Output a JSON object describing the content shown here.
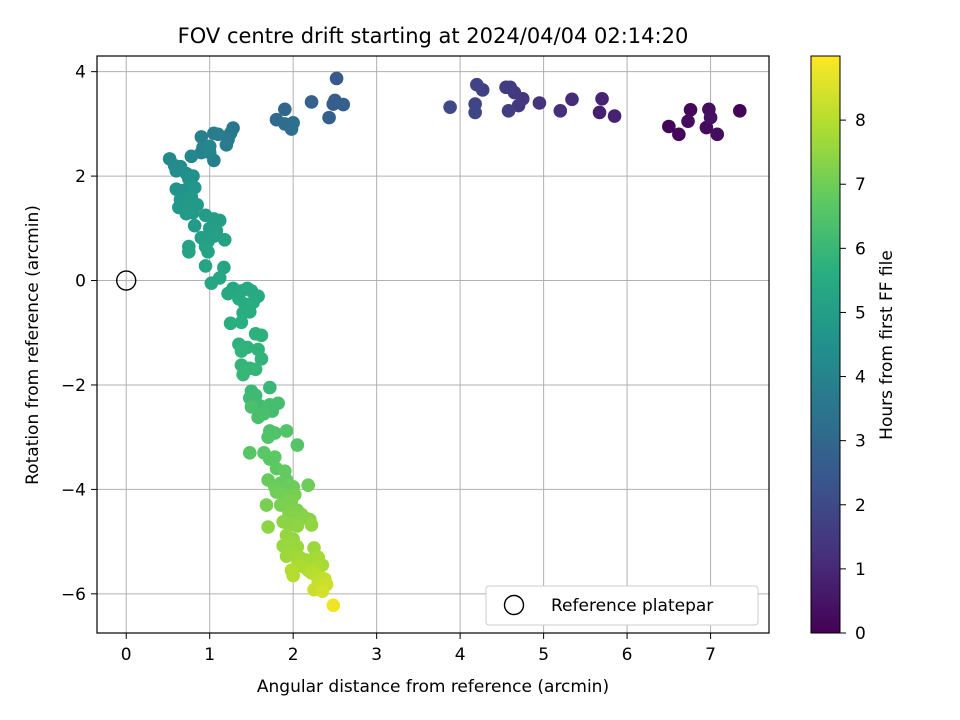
{
  "chart_data": {
    "type": "scatter",
    "title": "FOV centre drift starting at 2024/04/04 02:14:20",
    "xlabel": "Angular distance from reference (arcmin)",
    "ylabel": "Rotation from reference (arcmin)",
    "xlim": [
      -0.35,
      7.7
    ],
    "ylim": [
      -6.75,
      4.3
    ],
    "xticks": [
      "0",
      "1",
      "2",
      "3",
      "4",
      "5",
      "6",
      "7"
    ],
    "yticks": [
      "−6",
      "−4",
      "−2",
      "0",
      "2",
      "4"
    ],
    "grid": true,
    "legend": {
      "position": "lower-right",
      "entries": [
        "Reference platepar"
      ]
    },
    "colorbar": {
      "label": "Hours from first FF file",
      "min": 0,
      "max": 9.0,
      "ticks": [
        "0",
        "1",
        "2",
        "3",
        "4",
        "5",
        "6",
        "7",
        "8"
      ],
      "colormap": "viridis"
    },
    "reference_point": {
      "x": 0,
      "y": 0,
      "label": "Reference platepar"
    },
    "points": [
      [
        6.5,
        2.95,
        0.1
      ],
      [
        6.62,
        2.8,
        0.2
      ],
      [
        6.73,
        3.05,
        0.3
      ],
      [
        6.76,
        3.27,
        0.15
      ],
      [
        6.95,
        2.93,
        0.25
      ],
      [
        6.98,
        3.28,
        0.35
      ],
      [
        7.0,
        3.12,
        0.4
      ],
      [
        7.08,
        2.8,
        0.3
      ],
      [
        7.35,
        3.25,
        0.05
      ],
      [
        5.7,
        3.48,
        0.9
      ],
      [
        5.67,
        3.22,
        0.8
      ],
      [
        5.85,
        3.15,
        0.85
      ],
      [
        5.34,
        3.47,
        1.1
      ],
      [
        5.2,
        3.25,
        1.2
      ],
      [
        4.95,
        3.4,
        1.3
      ],
      [
        4.75,
        3.48,
        1.4
      ],
      [
        4.7,
        3.35,
        1.5
      ],
      [
        4.65,
        3.6,
        1.45
      ],
      [
        4.55,
        3.7,
        1.6
      ],
      [
        4.6,
        3.7,
        1.55
      ],
      [
        4.58,
        3.25,
        1.65
      ],
      [
        4.27,
        3.65,
        1.7
      ],
      [
        4.2,
        3.75,
        1.8
      ],
      [
        4.18,
        3.38,
        1.85
      ],
      [
        4.18,
        3.22,
        1.9
      ],
      [
        3.88,
        3.32,
        2.0
      ],
      [
        2.52,
        3.87,
        2.5
      ],
      [
        2.5,
        3.45,
        2.6
      ],
      [
        2.48,
        3.38,
        2.65
      ],
      [
        2.6,
        3.37,
        2.7
      ],
      [
        2.43,
        3.12,
        2.75
      ],
      [
        2.22,
        3.42,
        2.8
      ],
      [
        1.9,
        3.28,
        3.0
      ],
      [
        1.8,
        3.08,
        3.1
      ],
      [
        1.9,
        3.0,
        3.2
      ],
      [
        2.0,
        3.02,
        3.3
      ],
      [
        1.98,
        2.9,
        3.25
      ],
      [
        1.28,
        2.92,
        3.5
      ],
      [
        1.25,
        2.82,
        3.6
      ],
      [
        1.22,
        2.7,
        3.65
      ],
      [
        1.2,
        2.6,
        3.7
      ],
      [
        1.05,
        2.82,
        3.75
      ],
      [
        1.1,
        2.8,
        3.8
      ],
      [
        1.05,
        2.3,
        3.85
      ],
      [
        0.9,
        2.75,
        3.9
      ],
      [
        0.92,
        2.55,
        3.95
      ],
      [
        0.9,
        2.45,
        4.0
      ],
      [
        1.0,
        2.45,
        4.05
      ],
      [
        1.0,
        2.57,
        4.1
      ],
      [
        0.78,
        2.38,
        4.15
      ],
      [
        0.52,
        2.33,
        4.25
      ],
      [
        0.58,
        2.2,
        4.3
      ],
      [
        0.6,
        2.1,
        4.35
      ],
      [
        0.65,
        2.18,
        4.4
      ],
      [
        0.72,
        2.05,
        4.45
      ],
      [
        0.8,
        2.0,
        4.5
      ],
      [
        0.75,
        1.95,
        4.55
      ],
      [
        0.6,
        1.75,
        4.6
      ],
      [
        0.68,
        1.72,
        4.62
      ],
      [
        0.75,
        1.78,
        4.65
      ],
      [
        0.82,
        1.78,
        4.68
      ],
      [
        0.65,
        1.55,
        4.7
      ],
      [
        0.7,
        1.5,
        4.72
      ],
      [
        0.78,
        1.6,
        4.75
      ],
      [
        0.63,
        1.4,
        4.78
      ],
      [
        0.75,
        1.42,
        4.8
      ],
      [
        0.8,
        1.3,
        4.82
      ],
      [
        0.85,
        1.45,
        4.85
      ],
      [
        0.72,
        1.28,
        4.88
      ],
      [
        0.82,
        1.05,
        4.9
      ],
      [
        0.95,
        1.25,
        4.92
      ],
      [
        1.05,
        1.18,
        4.95
      ],
      [
        1.12,
        1.15,
        4.98
      ],
      [
        1.0,
        1.0,
        5.0
      ],
      [
        1.08,
        0.95,
        5.02
      ],
      [
        0.9,
        0.82,
        5.05
      ],
      [
        0.98,
        0.75,
        5.08
      ],
      [
        1.05,
        0.85,
        5.1
      ],
      [
        1.18,
        0.78,
        5.12
      ],
      [
        0.95,
        0.65,
        5.15
      ],
      [
        0.75,
        0.65,
        5.18
      ],
      [
        0.75,
        0.55,
        5.2
      ],
      [
        0.98,
        0.55,
        5.22
      ],
      [
        0.95,
        0.28,
        5.25
      ],
      [
        1.17,
        0.25,
        5.28
      ],
      [
        1.12,
        0.05,
        5.3
      ],
      [
        1.02,
        -0.05,
        5.32
      ],
      [
        1.28,
        -0.15,
        5.35
      ],
      [
        1.22,
        -0.25,
        5.38
      ],
      [
        1.38,
        -0.2,
        5.4
      ],
      [
        1.45,
        -0.15,
        5.42
      ],
      [
        1.5,
        -0.2,
        5.45
      ],
      [
        1.58,
        -0.3,
        5.48
      ],
      [
        1.35,
        -0.35,
        5.5
      ],
      [
        1.42,
        -0.45,
        5.52
      ],
      [
        1.52,
        -0.42,
        5.55
      ],
      [
        1.4,
        -0.62,
        5.58
      ],
      [
        1.48,
        -0.6,
        5.6
      ],
      [
        1.38,
        -0.8,
        5.62
      ],
      [
        1.25,
        -0.82,
        5.65
      ],
      [
        1.55,
        -1.02,
        5.7
      ],
      [
        1.62,
        -1.05,
        5.72
      ],
      [
        1.35,
        -1.22,
        5.75
      ],
      [
        1.45,
        -1.28,
        5.78
      ],
      [
        1.58,
        -1.32,
        5.8
      ],
      [
        1.38,
        -1.35,
        5.82
      ],
      [
        1.62,
        -1.5,
        5.85
      ],
      [
        1.38,
        -1.62,
        5.88
      ],
      [
        1.48,
        -1.68,
        5.9
      ],
      [
        1.55,
        -1.7,
        5.92
      ],
      [
        1.4,
        -1.8,
        5.95
      ],
      [
        1.72,
        -2.05,
        6.0
      ],
      [
        1.5,
        -2.12,
        6.05
      ],
      [
        1.55,
        -2.2,
        6.1
      ],
      [
        1.48,
        -2.25,
        6.12
      ],
      [
        1.6,
        -2.4,
        6.15
      ],
      [
        1.68,
        -2.48,
        6.18
      ],
      [
        1.75,
        -2.5,
        6.2
      ],
      [
        1.82,
        -2.35,
        6.25
      ],
      [
        1.72,
        -2.38,
        6.28
      ],
      [
        1.65,
        -2.55,
        6.3
      ],
      [
        1.58,
        -2.62,
        6.32
      ],
      [
        1.5,
        -2.42,
        6.35
      ],
      [
        1.72,
        -2.88,
        6.4
      ],
      [
        1.78,
        -2.92,
        6.45
      ],
      [
        1.7,
        -3.0,
        6.48
      ],
      [
        1.92,
        -2.88,
        6.5
      ],
      [
        2.05,
        -3.15,
        6.55
      ],
      [
        1.48,
        -3.3,
        6.6
      ],
      [
        1.65,
        -3.3,
        6.65
      ],
      [
        1.72,
        -3.42,
        6.68
      ],
      [
        1.78,
        -3.38,
        6.7
      ],
      [
        1.8,
        -3.6,
        6.75
      ],
      [
        1.9,
        -3.65,
        6.8
      ],
      [
        1.92,
        -3.82,
        6.82
      ],
      [
        1.85,
        -3.88,
        6.85
      ],
      [
        1.7,
        -3.82,
        6.88
      ],
      [
        1.78,
        -3.95,
        6.9
      ],
      [
        1.95,
        -3.92,
        6.92
      ],
      [
        2.0,
        -3.95,
        6.95
      ],
      [
        2.18,
        -3.92,
        6.98
      ],
      [
        1.8,
        -4.05,
        7.0
      ],
      [
        1.88,
        -4.1,
        7.05
      ],
      [
        1.95,
        -4.15,
        7.08
      ],
      [
        2.02,
        -4.1,
        7.1
      ],
      [
        1.68,
        -4.3,
        7.12
      ],
      [
        1.85,
        -4.3,
        7.15
      ],
      [
        1.98,
        -4.22,
        7.18
      ],
      [
        2.05,
        -4.4,
        7.2
      ],
      [
        1.95,
        -4.45,
        7.25
      ],
      [
        2.0,
        -4.52,
        7.28
      ],
      [
        2.1,
        -4.48,
        7.3
      ],
      [
        2.15,
        -4.55,
        7.32
      ],
      [
        2.2,
        -4.58,
        7.35
      ],
      [
        1.7,
        -4.72,
        7.38
      ],
      [
        1.88,
        -4.62,
        7.4
      ],
      [
        1.95,
        -4.68,
        7.42
      ],
      [
        2.05,
        -4.7,
        7.45
      ],
      [
        2.22,
        -4.68,
        7.48
      ],
      [
        1.92,
        -4.88,
        7.5
      ],
      [
        2.0,
        -4.95,
        7.52
      ],
      [
        1.88,
        -5.08,
        7.55
      ],
      [
        1.95,
        -5.05,
        7.58
      ],
      [
        2.05,
        -5.1,
        7.6
      ],
      [
        2.25,
        -5.12,
        7.62
      ],
      [
        1.92,
        -5.28,
        7.65
      ],
      [
        2.0,
        -5.25,
        7.68
      ],
      [
        2.08,
        -5.3,
        7.7
      ],
      [
        2.15,
        -5.35,
        7.72
      ],
      [
        2.22,
        -5.35,
        7.75
      ],
      [
        2.3,
        -5.3,
        7.78
      ],
      [
        2.35,
        -5.45,
        7.8
      ],
      [
        2.05,
        -5.45,
        7.82
      ],
      [
        2.12,
        -5.48,
        7.85
      ],
      [
        2.18,
        -5.55,
        7.88
      ],
      [
        2.25,
        -5.52,
        7.9
      ],
      [
        2.28,
        -5.62,
        7.92
      ],
      [
        1.98,
        -5.55,
        7.95
      ],
      [
        2.0,
        -5.65,
        7.98
      ],
      [
        2.22,
        -5.6,
        8.0
      ],
      [
        2.28,
        -5.65,
        8.05
      ],
      [
        2.35,
        -5.7,
        8.08
      ],
      [
        2.3,
        -5.78,
        8.1
      ],
      [
        2.38,
        -5.72,
        8.15
      ],
      [
        2.32,
        -5.85,
        8.2
      ],
      [
        2.25,
        -5.92,
        8.25
      ],
      [
        2.4,
        -5.82,
        8.3
      ],
      [
        2.35,
        -5.95,
        8.4
      ],
      [
        2.48,
        -6.22,
        8.8
      ]
    ]
  }
}
